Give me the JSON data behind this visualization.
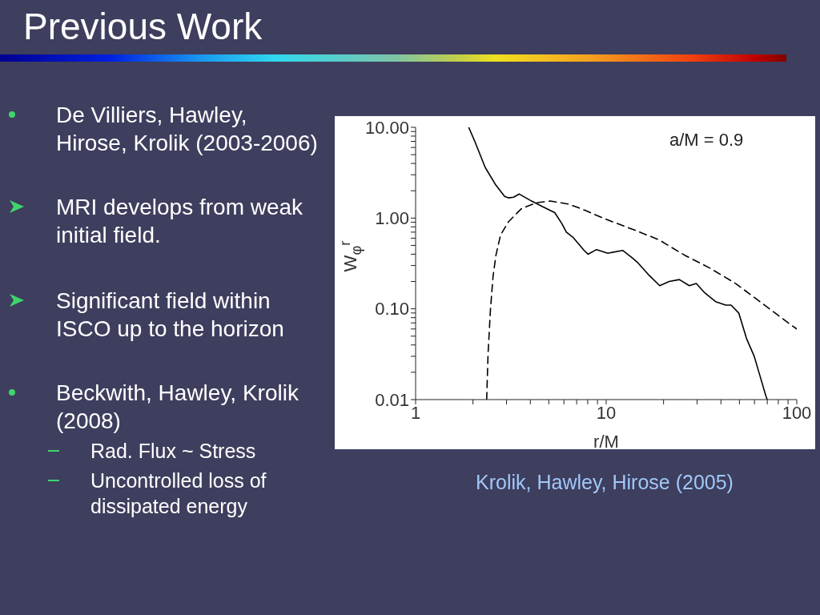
{
  "chart_data": {
    "type": "line",
    "title": "Previous Work",
    "xlabel": "r/M",
    "ylabel": "W$_{φ}$$^{r}$",
    "log": "xy",
    "marker": "none",
    "xlim": [
      1,
      100
    ],
    "ylim": [
      0.01,
      10
    ],
    "xticks": [
      1,
      {
        "value": 2,
        "label": null
      },
      {
        "value": 3,
        "label": null
      },
      {
        "value": 4,
        "label": null
      },
      {
        "value": 5,
        "label": null
      },
      {
        "value": 6,
        "label": null
      },
      {
        "value": 7,
        "label": null
      },
      {
        "value": 8,
        "label": null
      },
      {
        "value": 9,
        "label": null
      },
      10,
      {
        "value": 20,
        "label": null
      },
      {
        "value": 30,
        "label": null
      },
      {
        "value": 40,
        "label": null
      },
      {
        "value": 50,
        "label": null
      },
      {
        "value": 60,
        "label": null
      },
      {
        "value": 70,
        "label": null
      },
      {
        "value": 80,
        "label": null
      },
      {
        "value": 90,
        "label": null
      },
      100
    ],
    "yticks": [
      {
        "value": 0.01,
        "label": "0.01"
      },
      {
        "value": 0.02,
        "label": null
      },
      {
        "value": 0.03,
        "label": null
      },
      {
        "value": 0.04,
        "label": null
      },
      {
        "value": 0.05,
        "label": null
      },
      {
        "value": 0.06,
        "label": null
      },
      {
        "value": 0.07,
        "label": null
      },
      {
        "value": 0.08,
        "label": null
      },
      {
        "value": 0.09,
        "label": null
      },
      {
        "value": 0.1,
        "label": "0.10"
      },
      {
        "value": 0.2,
        "label": null
      },
      {
        "value": 0.3,
        "label": null
      },
      {
        "value": 0.4,
        "label": null
      },
      {
        "value": 0.5,
        "label": null
      },
      {
        "value": 0.6,
        "label": null
      },
      {
        "value": 0.7,
        "label": null
      },
      {
        "value": 0.8,
        "label": null
      },
      {
        "value": 0.9,
        "label": null
      },
      {
        "value": 1,
        "label": "1.00"
      },
      {
        "value": 2,
        "label": null
      },
      {
        "value": 3,
        "label": null
      },
      {
        "value": 4,
        "label": null
      },
      {
        "value": 5,
        "label": null
      },
      {
        "value": 6,
        "label": null
      },
      {
        "value": 7,
        "label": null
      },
      {
        "value": 8,
        "label": null
      },
      {
        "value": 9,
        "label": null
      },
      {
        "value": 10,
        "label": "10.00"
      }
    ],
    "series": [
      {
        "color": "#000000",
        "line_style": "solid",
        "x": [
          1.9,
          2.05,
          2.32,
          2.64,
          2.93,
          3.07,
          3.27,
          3.5,
          4.06,
          4.63,
          5.37,
          5.85,
          6.18,
          6.72,
          7.66,
          8.03,
          8.9,
          10.2,
          12.2,
          13.8,
          14.7,
          16.6,
          19.1,
          21.4,
          24.2,
          27.3,
          29.7,
          32.9,
          37.5,
          42.4,
          45.2,
          49.6,
          54.5,
          59.8,
          63.3,
          68.8,
          70
        ],
        "values": [
          10,
          6.9,
          3.6,
          2.3,
          1.73,
          1.67,
          1.7,
          1.84,
          1.54,
          1.34,
          1.15,
          0.87,
          0.7,
          0.61,
          0.44,
          0.4,
          0.45,
          0.41,
          0.44,
          0.36,
          0.32,
          0.24,
          0.18,
          0.2,
          0.21,
          0.18,
          0.19,
          0.15,
          0.12,
          0.11,
          0.11,
          0.09,
          0.047,
          0.03,
          0.02,
          0.011,
          0.01
        ]
      },
      {
        "color": "#000000",
        "line_style": "dashed",
        "x": [
          2.36,
          2.4,
          2.47,
          2.55,
          2.64,
          2.79,
          3.07,
          3.59,
          4.33,
          5.08,
          6.3,
          7.38,
          10.1,
          13.8,
          18.8,
          25.8,
          35.1,
          47.8,
          93.7,
          100
        ],
        "values": [
          0.01,
          0.032,
          0.098,
          0.23,
          0.39,
          0.65,
          0.91,
          1.27,
          1.48,
          1.54,
          1.43,
          1.27,
          0.96,
          0.75,
          0.58,
          0.39,
          0.28,
          0.19,
          0.066,
          0.06
        ]
      }
    ],
    "annotations": [
      "a/M = 0.9",
      "Krolik, Hawley, Hirose (2005)",
      "De Villiers, Hawley, Hirose, Krolik (2003-2006)",
      "MRI develops from weak initial field.",
      "Significant field within ISCO up to the horizon",
      "Beckwith, Hawley, Krolik (2008)",
      "Rad. Flux ~ Stress",
      "Uncontrolled loss of dissipated energy"
    ]
  }
}
